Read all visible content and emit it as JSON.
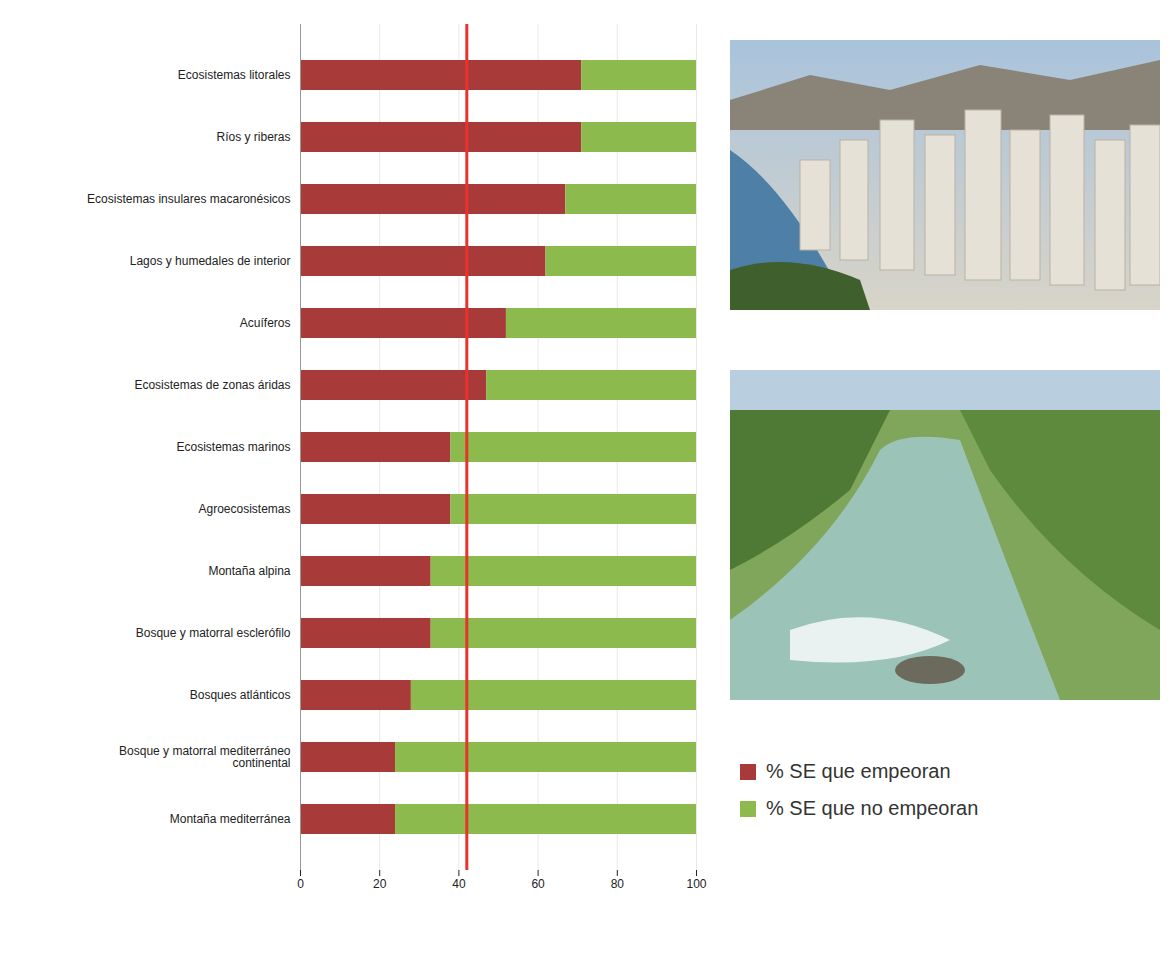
{
  "chart_data": {
    "type": "bar",
    "orientation": "horizontal",
    "stacked": true,
    "categories": [
      "Ecosistemas litorales",
      "Ríos y riberas",
      "Ecosistemas insulares macaronésicos",
      "Lagos y humedales de interior",
      "Acuíferos",
      "Ecosistemas de zonas áridas",
      "Ecosistemas marinos",
      "Agroecosistemas",
      "Montaña alpina",
      "Bosque y matorral esclerófilo",
      "Bosques atlánticos",
      "Bosque y matorral mediterráneo continental",
      "Montaña mediterránea"
    ],
    "series": [
      {
        "name": "% SE que empeoran",
        "color": "#a83a3a",
        "values": [
          71,
          71,
          67,
          62,
          52,
          47,
          38,
          38,
          33,
          33,
          28,
          24,
          24
        ]
      },
      {
        "name": "% SE que no empeoran",
        "color": "#8cba4c",
        "values": [
          29,
          29,
          33,
          38,
          48,
          53,
          62,
          62,
          67,
          67,
          72,
          76,
          76
        ]
      }
    ],
    "reference_value": 42,
    "xlim": [
      0,
      100
    ],
    "xticks": [
      0,
      20,
      40,
      60,
      80,
      100
    ],
    "grid": true,
    "legend": "lower right"
  }
}
